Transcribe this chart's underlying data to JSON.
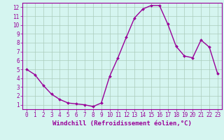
{
  "x": [
    0,
    1,
    2,
    3,
    4,
    5,
    6,
    7,
    8,
    9,
    10,
    11,
    12,
    13,
    14,
    15,
    16,
    17,
    18,
    19,
    20,
    21,
    22,
    23
  ],
  "y": [
    5.0,
    4.4,
    3.2,
    2.2,
    1.6,
    1.2,
    1.1,
    1.0,
    0.8,
    1.2,
    4.2,
    6.3,
    8.6,
    10.8,
    11.8,
    12.2,
    12.2,
    10.1,
    7.6,
    6.5,
    6.3,
    8.3,
    7.5,
    4.5
  ],
  "line_color": "#990099",
  "marker": "D",
  "markersize": 2.0,
  "linewidth": 1.0,
  "bg_color": "#d5f5f0",
  "grid_color": "#aaccbb",
  "xlim": [
    -0.5,
    23.5
  ],
  "ylim": [
    0.5,
    12.5
  ],
  "yticks": [
    1,
    2,
    3,
    4,
    5,
    6,
    7,
    8,
    9,
    10,
    11,
    12
  ],
  "xticks": [
    0,
    1,
    2,
    3,
    4,
    5,
    6,
    7,
    8,
    9,
    10,
    11,
    12,
    13,
    14,
    15,
    16,
    17,
    18,
    19,
    20,
    21,
    22,
    23
  ],
  "xlabel": "Windchill (Refroidissement éolien,°C)",
  "xlabel_color": "#990099",
  "xlabel_fontsize": 6.5,
  "tick_fontsize": 5.5,
  "tick_color": "#990099",
  "spine_color": "#990099"
}
